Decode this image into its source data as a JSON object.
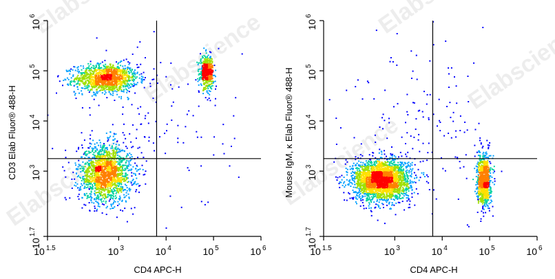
{
  "watermark": "Elabscience",
  "colors": {
    "density_scale": [
      "#0000ff",
      "#00a0ff",
      "#00d2a0",
      "#a0e000",
      "#ffe000",
      "#ff8000",
      "#ff0000"
    ],
    "axis": "#000000",
    "gate_line": "#000000"
  },
  "chart_data": [
    {
      "type": "scatter",
      "subtype": "flow-cytometry-density-dot-plot",
      "xlabel": "CD4 APC-H",
      "ylabel": "CD3 Elab Fluor® 488-H",
      "xscale": "log",
      "yscale": "log",
      "xlim": [
        1.5,
        6
      ],
      "ylim": [
        1.7,
        6
      ],
      "x_ticks": [
        {
          "base": "10",
          "exp": "1.5",
          "value": 1.5
        },
        {
          "base": "10",
          "exp": "3",
          "value": 3
        },
        {
          "base": "10",
          "exp": "4",
          "value": 4
        },
        {
          "base": "10",
          "exp": "5",
          "value": 5
        },
        {
          "base": "10",
          "exp": "6",
          "value": 6
        }
      ],
      "y_ticks": [
        {
          "base": "10",
          "exp": "1.7",
          "value": 1.7
        },
        {
          "base": "10",
          "exp": "3",
          "value": 3
        },
        {
          "base": "10",
          "exp": "4",
          "value": 4
        },
        {
          "base": "10",
          "exp": "5",
          "value": 5
        },
        {
          "base": "10",
          "exp": "6",
          "value": 6
        }
      ],
      "gate": {
        "x": 3.8,
        "y": 3.25
      },
      "populations": [
        {
          "cx": 2.75,
          "cy": 4.85,
          "sx": 0.33,
          "sy": 0.14,
          "n": 1300
        },
        {
          "cx": 2.72,
          "cy": 2.95,
          "sx": 0.28,
          "sy": 0.28,
          "n": 1700
        },
        {
          "cx": 4.86,
          "cy": 4.97,
          "sx": 0.07,
          "sy": 0.16,
          "n": 520
        },
        {
          "cx": 3.7,
          "cy": 3.9,
          "sx": 0.9,
          "sy": 0.9,
          "n": 140
        }
      ],
      "grid": false,
      "legend": "none"
    },
    {
      "type": "scatter",
      "subtype": "flow-cytometry-density-dot-plot",
      "xlabel": "CD4 APC-H",
      "ylabel": "Mouse IgM, κ Elab Fluor® 488-H",
      "xscale": "log",
      "yscale": "log",
      "xlim": [
        1.5,
        6
      ],
      "ylim": [
        1.7,
        6
      ],
      "x_ticks": [
        {
          "base": "10",
          "exp": "1.5",
          "value": 1.5
        },
        {
          "base": "10",
          "exp": "3",
          "value": 3
        },
        {
          "base": "10",
          "exp": "4",
          "value": 4
        },
        {
          "base": "10",
          "exp": "5",
          "value": 5
        },
        {
          "base": "10",
          "exp": "6",
          "value": 6
        }
      ],
      "y_ticks": [
        {
          "base": "10",
          "exp": "1.7",
          "value": 1.7
        },
        {
          "base": "10",
          "exp": "3",
          "value": 3
        },
        {
          "base": "10",
          "exp": "4",
          "value": 4
        },
        {
          "base": "10",
          "exp": "5",
          "value": 5
        },
        {
          "base": "10",
          "exp": "6",
          "value": 6
        }
      ],
      "gate": {
        "x": 3.8,
        "y": 3.25
      },
      "populations": [
        {
          "cx": 2.72,
          "cy": 2.82,
          "sx": 0.3,
          "sy": 0.2,
          "n": 2600
        },
        {
          "cx": 4.88,
          "cy": 2.82,
          "sx": 0.07,
          "sy": 0.25,
          "n": 900
        },
        {
          "cx": 3.6,
          "cy": 3.9,
          "sx": 0.8,
          "sy": 0.9,
          "n": 160
        }
      ],
      "grid": false,
      "legend": "none"
    }
  ]
}
